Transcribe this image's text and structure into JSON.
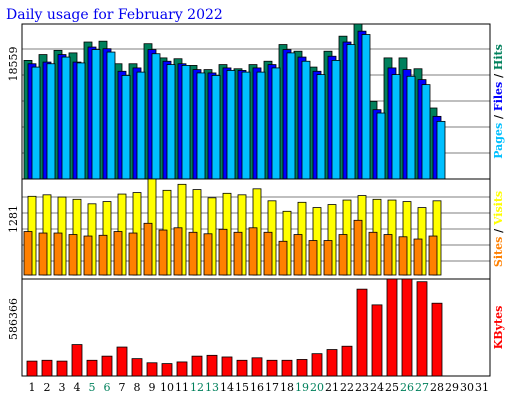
{
  "chart_data": {
    "type": "bar",
    "title": "Daily usage for February 2022",
    "colors": {
      "background": "#ffffff",
      "title": "#0000ee",
      "hits": "#00805c",
      "files": "#0000ff",
      "pages": "#00c0ff",
      "visits": "#ffff00",
      "sites": "#ff8000",
      "kbytes": "#ff0000",
      "weekend": "#00805c",
      "weekday": "#000000",
      "slash": "#000000"
    },
    "x": {
      "categories": [
        "1",
        "2",
        "3",
        "4",
        "5",
        "6",
        "7",
        "8",
        "9",
        "10",
        "11",
        "12",
        "13",
        "14",
        "15",
        "16",
        "17",
        "18",
        "19",
        "20",
        "21",
        "22",
        "23",
        "24",
        "25",
        "26",
        "27",
        "28",
        "29",
        "30",
        "31"
      ],
      "weekend_days": [
        "5",
        "6",
        "12",
        "13",
        "19",
        "20",
        "26",
        "27"
      ]
    },
    "panels": {
      "hits": {
        "max_label": "18559",
        "ylim": [
          0,
          18559
        ],
        "legend": [
          {
            "text": "Pages",
            "color": "#00c0ff"
          },
          {
            "text": " / ",
            "color": "#000000"
          },
          {
            "text": "Files",
            "color": "#0000ff"
          },
          {
            "text": " / ",
            "color": "#000000"
          },
          {
            "text": "Hits",
            "color": "#00805c"
          }
        ],
        "series": [
          {
            "name": "Hits",
            "color": "#00805c",
            "values": [
              14200,
              14900,
              15400,
              15100,
              16400,
              16500,
              13800,
              13800,
              16200,
              14500,
              14400,
              13600,
              13100,
              13700,
              13200,
              13700,
              14100,
              16100,
              15300,
              13400,
              15300,
              17100,
              18559,
              9300,
              14500,
              14500,
              13200,
              8500,
              0,
              0,
              0
            ]
          },
          {
            "name": "Files",
            "color": "#0000ff",
            "values": [
              13800,
              14000,
              14900,
              14000,
              15800,
              15600,
              12900,
              13300,
              15500,
              14100,
              13800,
              13100,
              12700,
              13300,
              13000,
              13300,
              13700,
              15500,
              14600,
              12900,
              14700,
              16400,
              17700,
              8300,
              13300,
              13100,
              11900,
              7500,
              0,
              0,
              0
            ]
          },
          {
            "name": "Pages",
            "color": "#00c0ff",
            "values": [
              13400,
              13800,
              14600,
              13900,
              15500,
              15200,
              12400,
              12800,
              15000,
              13700,
              13600,
              12700,
              12400,
              13000,
              12800,
              12800,
              13300,
              15100,
              14100,
              12500,
              14200,
              16100,
              17300,
              7900,
              12500,
              12300,
              11300,
              6900,
              0,
              0,
              0
            ]
          }
        ]
      },
      "visits": {
        "max_label": "1281",
        "ylim": [
          0,
          1281
        ],
        "legend": [
          {
            "text": "Sites",
            "color": "#ff8000"
          },
          {
            "text": " / ",
            "color": "#000000"
          },
          {
            "text": "Visits",
            "color": "#ffff00"
          }
        ],
        "series": [
          {
            "name": "Visits",
            "color": "#ffff00",
            "values": [
              1050,
              1070,
              1040,
              1010,
              950,
              980,
              1080,
              1100,
              1281,
              1130,
              1210,
              1140,
              1030,
              1090,
              1070,
              1150,
              990,
              850,
              970,
              900,
              940,
              1000,
              1060,
              1010,
              1000,
              980,
              900,
              990,
              0,
              0,
              0
            ]
          },
          {
            "name": "Sites",
            "color": "#ff8000",
            "values": [
              580,
              560,
              560,
              540,
              520,
              530,
              580,
              560,
              690,
              600,
              630,
              570,
              550,
              610,
              570,
              630,
              570,
              450,
              540,
              460,
              460,
              540,
              730,
              570,
              540,
              510,
              480,
              520,
              0,
              0,
              0
            ]
          }
        ]
      },
      "kbytes": {
        "max_label": "586366",
        "ylim": [
          0,
          586366
        ],
        "legend": [
          {
            "text": "KBytes",
            "color": "#ff0000"
          }
        ],
        "series": [
          {
            "name": "KBytes",
            "color": "#ff0000",
            "values": [
              90000,
              95000,
              90000,
              190000,
              95000,
              120000,
              175000,
              105000,
              80000,
              75000,
              85000,
              120000,
              125000,
              115000,
              95000,
              110000,
              95000,
              95000,
              100000,
              135000,
              160000,
              180000,
              525000,
              430000,
              586366,
              586366,
              570000,
              440000,
              0,
              0,
              0
            ]
          }
        ]
      }
    }
  }
}
